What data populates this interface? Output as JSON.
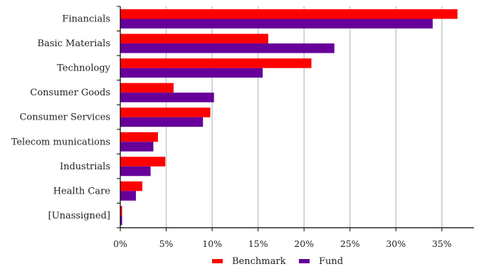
{
  "chart_data": {
    "type": "bar",
    "orientation": "horizontal",
    "categories": [
      "Financials",
      "Basic Materials",
      "Technology",
      "Consumer Goods",
      "Consumer Services",
      "Telecom munications",
      "Industrials",
      "Health Care",
      "[Unassigned]"
    ],
    "series": [
      {
        "name": "Benchmark",
        "color": "#ff0000",
        "values": [
          36.7,
          16.1,
          20.8,
          5.8,
          9.8,
          4.1,
          4.9,
          2.4,
          0.2
        ]
      },
      {
        "name": "Fund",
        "color": "#660099",
        "values": [
          34.0,
          23.3,
          15.5,
          10.2,
          9.0,
          3.6,
          3.3,
          1.7,
          0.2
        ]
      }
    ],
    "xlim": [
      0,
      38.5
    ],
    "xticks": [
      0,
      5,
      10,
      15,
      20,
      25,
      30,
      35
    ],
    "xtick_labels": [
      "0%",
      "5%",
      "10%",
      "15%",
      "20%",
      "25%",
      "30%",
      "35%"
    ],
    "grid": true,
    "legend_position": "bottom"
  }
}
